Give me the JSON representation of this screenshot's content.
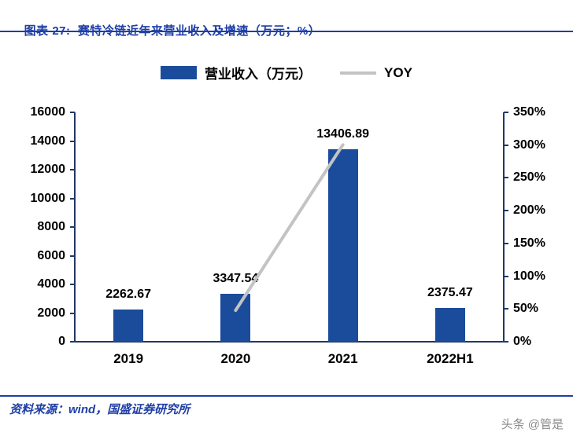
{
  "header": {
    "title": "图表 27:  赛特冷链近年来营业收入及增速（万元；%）"
  },
  "chart_data": {
    "type": "bar",
    "title": "赛特冷链近年来营业收入及增速（万元；%）",
    "categories": [
      "2019",
      "2020",
      "2021",
      "2022H1"
    ],
    "series": [
      {
        "name": "营业收入（万元）",
        "type": "bar",
        "axis": "left",
        "values": [
          2262.67,
          3347.54,
          13406.89,
          2375.47
        ],
        "color": "#1B4C9B"
      },
      {
        "name": "YOY",
        "type": "line",
        "axis": "right",
        "values": [
          null,
          47.9,
          300.5,
          null
        ],
        "color": "#C3C3C3"
      }
    ],
    "left_axis": {
      "min": 0,
      "max": 16000,
      "step": 2000
    },
    "right_axis": {
      "min": 0,
      "max": 350,
      "step": 50,
      "suffix": "%"
    },
    "grid": false,
    "legend_position": "top"
  },
  "footer": {
    "source": "资料来源：wind，国盛证券研究所",
    "watermark": "头条 @管是"
  },
  "colors": {
    "accent_blue": "#1F3FA6",
    "bar_blue": "#1B4C9B",
    "line_gray": "#C3C3C3",
    "axis_dark": "#203864",
    "watermark_gray": "#8A8A8A"
  }
}
